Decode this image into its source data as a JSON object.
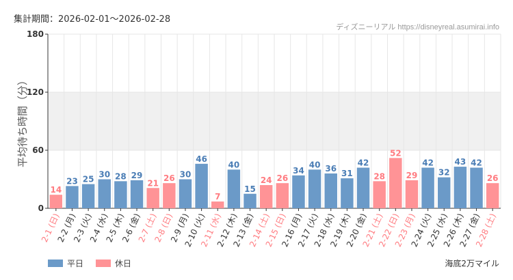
{
  "header": {
    "period": "集計期間：2026-02-01〜2026-02-28",
    "credit": "ディズニーリアル https://disneyreal.asumirai.info"
  },
  "footer": {
    "area": "海底2万マイル"
  },
  "legend": [
    {
      "label": "平日",
      "color": "#6b9ac8"
    },
    {
      "label": "休日",
      "color": "#ff9396"
    }
  ],
  "chart_data": {
    "type": "bar",
    "ylabel": "平均待ち時間（分）",
    "ylim": [
      0,
      180
    ],
    "yticks": [
      0,
      60,
      120,
      180
    ],
    "shaded_band": [
      60,
      120
    ],
    "grid": true,
    "categories": [
      "2-1 (日)",
      "2-2 (月)",
      "2-3 (火)",
      "2-4 (水)",
      "2-5 (木)",
      "2-6 (金)",
      "2-7 (土)",
      "2-8 (日)",
      "2-9 (月)",
      "2-10 (火)",
      "2-11 (水)",
      "2-12 (木)",
      "2-13 (金)",
      "2-14 (土)",
      "2-15 (日)",
      "2-16 (月)",
      "2-17 (火)",
      "2-18 (水)",
      "2-19 (木)",
      "2-20 (金)",
      "2-21 (土)",
      "2-22 (日)",
      "2-23 (月)",
      "2-24 (火)",
      "2-25 (水)",
      "2-26 (木)",
      "2-27 (金)",
      "2-28 (土)"
    ],
    "values": [
      14,
      23,
      25,
      30,
      28,
      29,
      21,
      26,
      30,
      46,
      7,
      40,
      15,
      24,
      26,
      34,
      40,
      36,
      31,
      42,
      28,
      52,
      29,
      42,
      32,
      43,
      42,
      26
    ],
    "holiday": [
      true,
      false,
      false,
      false,
      false,
      false,
      true,
      true,
      false,
      false,
      true,
      false,
      false,
      true,
      true,
      false,
      false,
      false,
      false,
      false,
      true,
      true,
      true,
      false,
      false,
      false,
      false,
      true
    ]
  }
}
